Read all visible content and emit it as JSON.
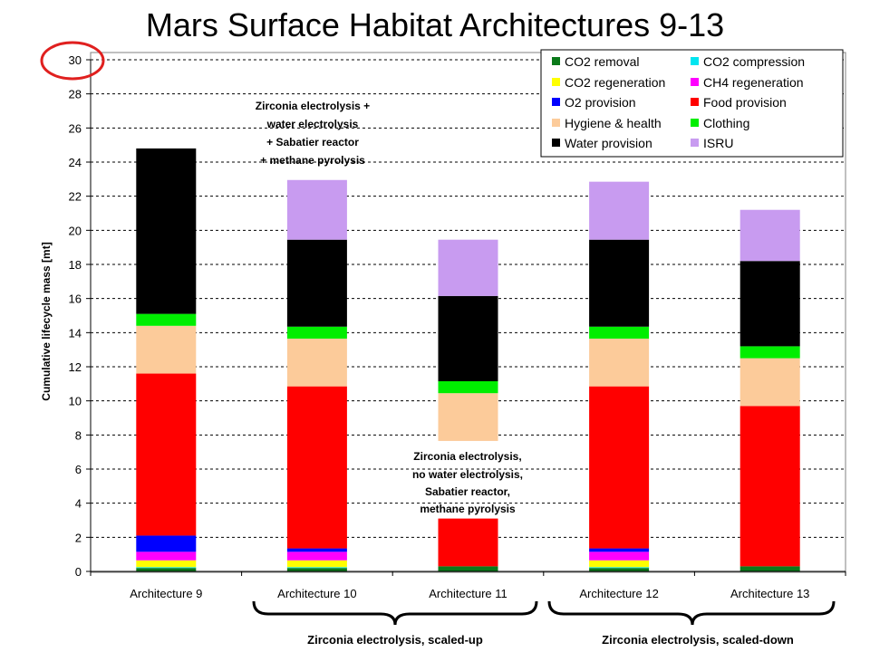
{
  "title": "Mars Surface Habitat Architectures 9-13",
  "annotations": {
    "top": [
      "Zirconia electrolysis +",
      "water electrolysis",
      "+ Sabatier reactor",
      "+ methane pyrolysis"
    ],
    "mid": [
      "Zirconia electrolysis,",
      "no water electrolysis,",
      "Sabatier reactor,",
      "methane pyrolysis"
    ]
  },
  "groups": {
    "left": "Zirconia electrolysis, scaled-up",
    "right": "Zirconia electrolysis, scaled-down"
  },
  "highlight_color": "#e0201f",
  "chart_data": {
    "type": "bar",
    "stacked": true,
    "title": "Mars Surface Habitat Architectures 9-13",
    "ylabel": "Cumulative lifecycle mass [mt]",
    "xlabel": "",
    "ylim": [
      0,
      30
    ],
    "yticks": [
      0,
      2,
      4,
      6,
      8,
      10,
      12,
      14,
      16,
      18,
      20,
      22,
      24,
      26,
      28,
      30
    ],
    "grid": true,
    "legend_position": "top-right",
    "categories": [
      "Architecture 9",
      "Architecture 10",
      "Architecture 11",
      "Architecture 12",
      "Architecture 13"
    ],
    "series": [
      {
        "name": "CO2 removal",
        "color": "#0a7a1a",
        "values": [
          0.2,
          0.2,
          0.3,
          0.2,
          0.3
        ]
      },
      {
        "name": "CO2 compression",
        "color": "#00e5f0",
        "values": [
          0.05,
          0.05,
          0,
          0.05,
          0
        ]
      },
      {
        "name": "CO2 regeneration",
        "color": "#ffff00",
        "values": [
          0.4,
          0.4,
          0,
          0.4,
          0
        ]
      },
      {
        "name": "CH4 regeneration",
        "color": "#ff00ff",
        "values": [
          0.5,
          0.5,
          0,
          0.5,
          0
        ]
      },
      {
        "name": "O2 provision",
        "color": "#0000ff",
        "values": [
          0.95,
          0.2,
          0,
          0.2,
          0
        ]
      },
      {
        "name": "Food provision",
        "color": "#ff0000",
        "values": [
          9.5,
          9.5,
          2.8,
          9.5,
          9.4
        ]
      },
      {
        "name": "Hygiene & health",
        "color": "#fccb9a",
        "values": [
          2.8,
          2.8,
          2.8,
          2.8,
          2.8
        ]
      },
      {
        "name": "Clothing",
        "color": "#00ee00",
        "values": [
          0.7,
          0.7,
          0.7,
          0.7,
          0.7
        ]
      },
      {
        "name": "Water provision",
        "color": "#000000",
        "values": [
          9.7,
          5.1,
          5.0,
          5.1,
          5.0
        ]
      },
      {
        "name": "ISRU",
        "color": "#c89bf0",
        "values": [
          0,
          3.5,
          3.3,
          3.4,
          3.0
        ]
      }
    ],
    "gap_note": {
      "category": "Architecture 11",
      "blank_from": 3.05,
      "blank_to": 7.65
    }
  }
}
